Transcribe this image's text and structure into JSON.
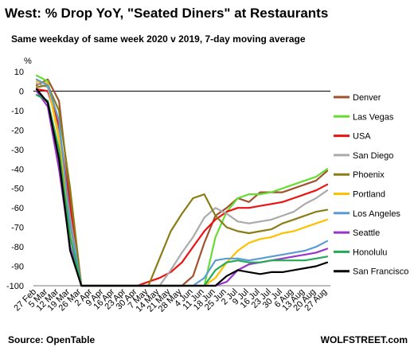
{
  "chart_data": {
    "type": "line",
    "title": "West: % Drop YoY, \"Seated Diners\" at Restaurants",
    "subtitle": "Same weekday of same week 2020 v 2019, 7-day moving average",
    "ylabel": "%",
    "source": "Source: OpenTable",
    "watermark": "WOLFSTREET.com",
    "ylim": [
      -100,
      10
    ],
    "yticks": [
      10,
      0,
      -10,
      -20,
      -30,
      -40,
      -50,
      -60,
      -70,
      -80,
      -90,
      -100
    ],
    "x_tick_labels": [
      "27 Feb",
      "5 Mar",
      "12 Mar",
      "19 Mar",
      "26 Mar",
      "2 Apr",
      "9 Apr",
      "16 Apr",
      "23 Apr",
      "30 Apr",
      "7 May",
      "14 May",
      "21 May",
      "28 May",
      "4 Jun",
      "11 Jun",
      "18 Jun",
      "25 Jun",
      "2 Jul",
      "9 Jul",
      "16 Jul",
      "23 Jul",
      "30 Jul",
      "6 Aug",
      "13 Aug",
      "20 Aug",
      "27 Aug"
    ],
    "x_dates": [
      "2020-02-27",
      "2020-03-05",
      "2020-03-12",
      "2020-03-19",
      "2020-03-26",
      "2020-04-02",
      "2020-04-09",
      "2020-04-16",
      "2020-04-23",
      "2020-04-30",
      "2020-05-07",
      "2020-05-14",
      "2020-05-21",
      "2020-05-28",
      "2020-06-04",
      "2020-06-11",
      "2020-06-18",
      "2020-06-25",
      "2020-07-02",
      "2020-07-09",
      "2020-07-16",
      "2020-07-23",
      "2020-07-30",
      "2020-08-06",
      "2020-08-13",
      "2020-08-20",
      "2020-08-27"
    ],
    "grid": false,
    "legend_position": "right",
    "series": [
      {
        "name": "Denver",
        "color": "#a0522d",
        "values": [
          3,
          6,
          -5,
          -55,
          -100,
          -100,
          -100,
          -100,
          -100,
          -100,
          -100,
          -100,
          -100,
          -100,
          -95,
          -78,
          -64,
          -60,
          -55,
          -57,
          -52,
          -52,
          -52,
          -50,
          -48,
          -46,
          -41
        ]
      },
      {
        "name": "Las Vegas",
        "color": "#66dd33",
        "values": [
          8,
          5,
          -20,
          -70,
          -100,
          -100,
          -100,
          -100,
          -100,
          -100,
          -100,
          -100,
          -100,
          -100,
          -100,
          -100,
          -75,
          -62,
          -55,
          -53,
          -53,
          -52,
          -50,
          -48,
          -46,
          -44,
          -40
        ]
      },
      {
        "name": "USA",
        "color": "#ee1111",
        "values": [
          1,
          0,
          -18,
          -60,
          -100,
          -100,
          -100,
          -100,
          -100,
          -100,
          -98,
          -96,
          -93,
          -88,
          -80,
          -72,
          -66,
          -62,
          -60,
          -60,
          -59,
          -58,
          -57,
          -55,
          -53,
          -51,
          -48
        ]
      },
      {
        "name": "San Diego",
        "color": "#aaaaaa",
        "values": [
          4,
          2,
          -22,
          -65,
          -100,
          -100,
          -100,
          -100,
          -100,
          -100,
          -100,
          -100,
          -92,
          -83,
          -75,
          -65,
          -60,
          -63,
          -67,
          -68,
          -67,
          -66,
          -64,
          -62,
          -58,
          -55,
          -51
        ]
      },
      {
        "name": "Phoenix",
        "color": "#8b7d16",
        "values": [
          2,
          3,
          -10,
          -50,
          -100,
          -100,
          -100,
          -100,
          -100,
          -100,
          -100,
          -86,
          -72,
          -63,
          -55,
          -53,
          -64,
          -70,
          -72,
          -73,
          -72,
          -71,
          -68,
          -66,
          -64,
          -62,
          -61
        ]
      },
      {
        "name": "Portland",
        "color": "#ffc000",
        "values": [
          5,
          4,
          -25,
          -70,
          -100,
          -100,
          -100,
          -100,
          -100,
          -100,
          -100,
          -100,
          -100,
          -100,
          -100,
          -100,
          -96,
          -88,
          -82,
          -78,
          -76,
          -75,
          -73,
          -72,
          -70,
          -68,
          -66
        ]
      },
      {
        "name": "Los Angeles",
        "color": "#5b9bd5",
        "values": [
          6,
          3,
          -15,
          -68,
          -100,
          -100,
          -100,
          -100,
          -100,
          -100,
          -100,
          -100,
          -100,
          -100,
          -100,
          -96,
          -87,
          -86,
          -86,
          -87,
          -86,
          -85,
          -84,
          -83,
          -82,
          -80,
          -77
        ]
      },
      {
        "name": "Seattle",
        "color": "#9933cc",
        "values": [
          0,
          -8,
          -40,
          -80,
          -100,
          -100,
          -100,
          -100,
          -100,
          -100,
          -100,
          -100,
          -100,
          -100,
          -100,
          -100,
          -100,
          -98,
          -92,
          -89,
          -88,
          -87,
          -86,
          -85,
          -84,
          -83,
          -81
        ]
      },
      {
        "name": "Honolulu",
        "color": "#22aa55",
        "values": [
          -2,
          -5,
          -30,
          -75,
          -100,
          -100,
          -100,
          -100,
          -100,
          -100,
          -100,
          -100,
          -100,
          -100,
          -100,
          -100,
          -92,
          -88,
          -87,
          -88,
          -88,
          -87,
          -87,
          -87,
          -87,
          -86,
          -85
        ]
      },
      {
        "name": "San Francisco",
        "color": "#000000",
        "values": [
          1,
          -6,
          -35,
          -82,
          -100,
          -100,
          -100,
          -100,
          -100,
          -100,
          -100,
          -100,
          -100,
          -100,
          -100,
          -100,
          -100,
          -95,
          -92,
          -93,
          -94,
          -93,
          -93,
          -92,
          -91,
          -90,
          -88
        ]
      }
    ]
  }
}
